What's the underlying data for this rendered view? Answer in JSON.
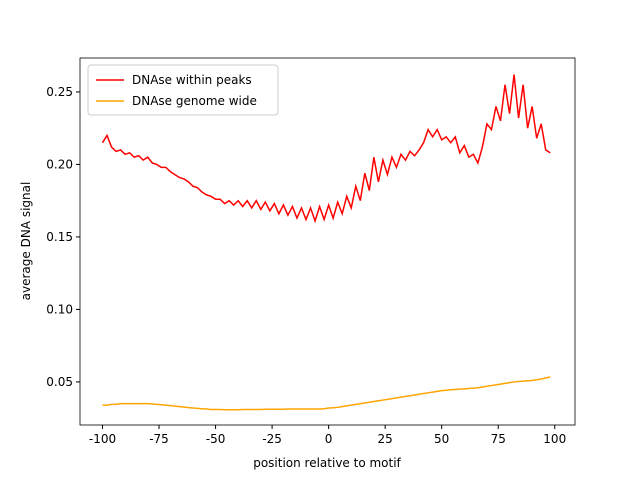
{
  "chart_data": {
    "type": "line",
    "xlabel": "position relative to motif",
    "ylabel": "average DNA signal",
    "x": [
      -100,
      -98,
      -96,
      -94,
      -92,
      -90,
      -88,
      -86,
      -84,
      -82,
      -80,
      -78,
      -76,
      -74,
      -72,
      -70,
      -68,
      -66,
      -64,
      -62,
      -60,
      -58,
      -56,
      -54,
      -52,
      -50,
      -48,
      -46,
      -44,
      -42,
      -40,
      -38,
      -36,
      -34,
      -32,
      -30,
      -28,
      -26,
      -24,
      -22,
      -20,
      -18,
      -16,
      -14,
      -12,
      -10,
      -8,
      -6,
      -4,
      -2,
      0,
      2,
      4,
      6,
      8,
      10,
      12,
      14,
      16,
      18,
      20,
      22,
      24,
      26,
      28,
      30,
      32,
      34,
      36,
      38,
      40,
      42,
      44,
      46,
      48,
      50,
      52,
      54,
      56,
      58,
      60,
      62,
      64,
      66,
      68,
      70,
      72,
      74,
      76,
      78,
      80,
      82,
      84,
      86,
      88,
      90,
      92,
      94,
      96,
      98
    ],
    "series": [
      {
        "name": "DNAse within peaks",
        "color": "#ff0000",
        "values": [
          0.215,
          0.22,
          0.212,
          0.209,
          0.21,
          0.207,
          0.208,
          0.205,
          0.206,
          0.203,
          0.205,
          0.201,
          0.2,
          0.198,
          0.198,
          0.195,
          0.193,
          0.191,
          0.19,
          0.188,
          0.185,
          0.184,
          0.181,
          0.179,
          0.178,
          0.176,
          0.176,
          0.173,
          0.175,
          0.172,
          0.175,
          0.171,
          0.175,
          0.17,
          0.175,
          0.169,
          0.174,
          0.168,
          0.173,
          0.166,
          0.172,
          0.165,
          0.171,
          0.163,
          0.17,
          0.162,
          0.17,
          0.161,
          0.171,
          0.162,
          0.172,
          0.163,
          0.174,
          0.166,
          0.178,
          0.17,
          0.185,
          0.175,
          0.194,
          0.182,
          0.205,
          0.188,
          0.203,
          0.193,
          0.205,
          0.198,
          0.207,
          0.203,
          0.209,
          0.206,
          0.21,
          0.215,
          0.224,
          0.219,
          0.224,
          0.217,
          0.219,
          0.215,
          0.219,
          0.208,
          0.213,
          0.205,
          0.207,
          0.201,
          0.212,
          0.228,
          0.224,
          0.24,
          0.23,
          0.255,
          0.235,
          0.262,
          0.232,
          0.255,
          0.225,
          0.24,
          0.218,
          0.228,
          0.21,
          0.208
        ]
      },
      {
        "name": "DNAse genome wide",
        "color": "#ffa500",
        "values": [
          0.034,
          0.034,
          0.0345,
          0.0345,
          0.035,
          0.035,
          0.035,
          0.035,
          0.035,
          0.035,
          0.035,
          0.0348,
          0.0345,
          0.0343,
          0.034,
          0.0337,
          0.0333,
          0.033,
          0.0327,
          0.0323,
          0.032,
          0.0318,
          0.0315,
          0.0313,
          0.031,
          0.031,
          0.031,
          0.0308,
          0.0308,
          0.0308,
          0.0308,
          0.031,
          0.031,
          0.031,
          0.031,
          0.031,
          0.0312,
          0.0312,
          0.0312,
          0.0312,
          0.0312,
          0.0313,
          0.0313,
          0.0313,
          0.0313,
          0.0313,
          0.0313,
          0.0313,
          0.0313,
          0.0315,
          0.032,
          0.0322,
          0.0325,
          0.033,
          0.0335,
          0.034,
          0.0345,
          0.035,
          0.0355,
          0.036,
          0.0365,
          0.037,
          0.0375,
          0.038,
          0.0385,
          0.039,
          0.0395,
          0.04,
          0.0405,
          0.041,
          0.0415,
          0.042,
          0.0425,
          0.043,
          0.0435,
          0.044,
          0.0443,
          0.0446,
          0.0448,
          0.045,
          0.0452,
          0.0455,
          0.0457,
          0.046,
          0.0465,
          0.047,
          0.0475,
          0.048,
          0.0485,
          0.049,
          0.0495,
          0.05,
          0.0503,
          0.0506,
          0.0508,
          0.051,
          0.0515,
          0.052,
          0.0527,
          0.0535
        ]
      }
    ],
    "xlim": [
      -109.95,
      108.95
    ],
    "ylim": [
      0.0203,
      0.2734
    ],
    "xticks": [
      -100,
      -75,
      -50,
      -25,
      0,
      25,
      50,
      75,
      100
    ],
    "yticks": [
      0.05,
      {
        "value": 0.1,
        "label": "0.10"
      },
      0.15,
      {
        "value": 0.2,
        "label": "0.20"
      },
      0.25
    ],
    "legend": "upper left",
    "grid": false
  }
}
